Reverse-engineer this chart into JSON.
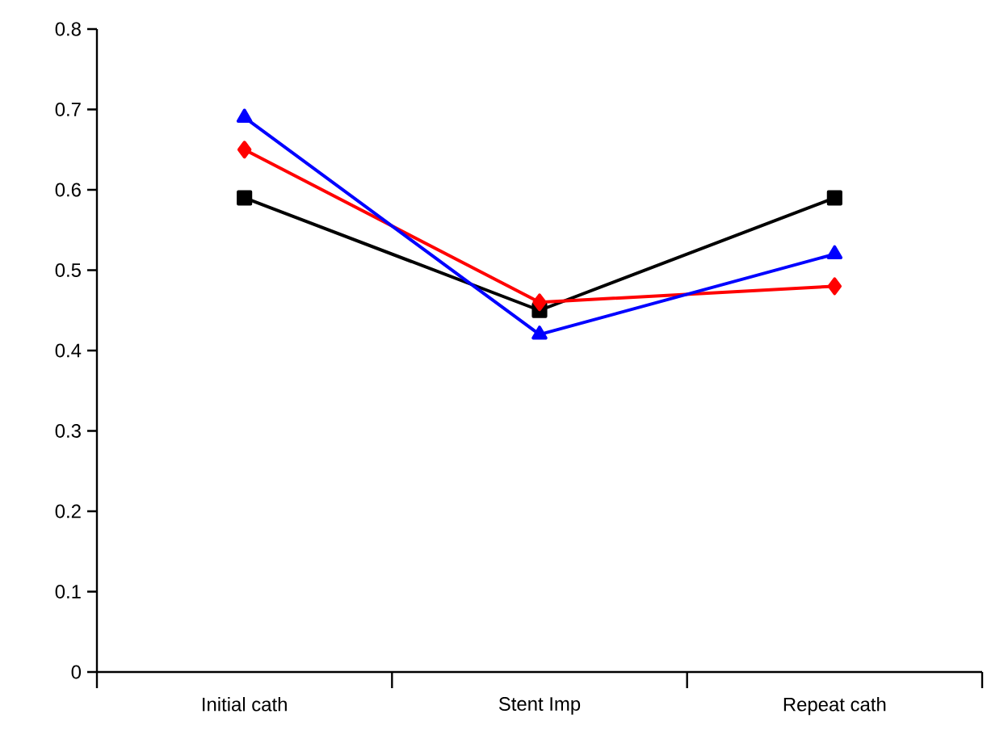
{
  "chart_data": {
    "type": "line",
    "categories": [
      "Initial cath",
      "Stent Imp",
      "Repeat cath"
    ],
    "series": [
      {
        "color": "#000000",
        "marker": "square",
        "values": [
          0.59,
          0.45,
          0.59
        ]
      },
      {
        "color": "#ff0000",
        "marker": "diamond",
        "values": [
          0.65,
          0.46,
          0.48
        ]
      },
      {
        "color": "#0000ff",
        "marker": "triangle",
        "values": [
          0.69,
          0.42,
          0.52
        ]
      }
    ],
    "ylim": [
      0,
      0.8
    ],
    "yticks": [
      0,
      0.1,
      0.2,
      0.3,
      0.4,
      0.5,
      0.6,
      0.7,
      0.8
    ]
  }
}
